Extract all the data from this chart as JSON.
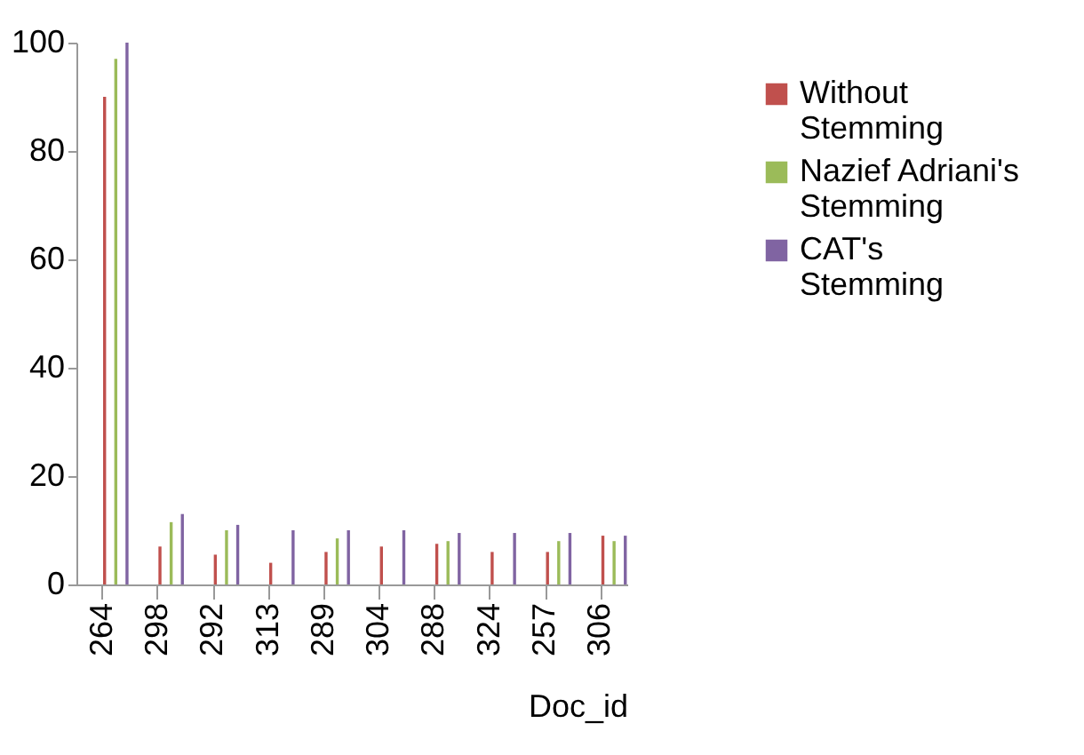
{
  "chart_data": {
    "type": "bar",
    "xlabel": "Doc_id",
    "categories": [
      "264",
      "298",
      "292",
      "313",
      "289",
      "304",
      "288",
      "324",
      "257",
      "306"
    ],
    "series": [
      {
        "name": "Without Stemming",
        "color": "#c0504d",
        "values": [
          90,
          7,
          5.5,
          4,
          6,
          7,
          7.5,
          6,
          6,
          9
        ]
      },
      {
        "name": "Nazief Adriani's Stemming",
        "color": "#9bbb59",
        "values": [
          97,
          11.5,
          10,
          0,
          8.5,
          0,
          8,
          0,
          8,
          8
        ]
      },
      {
        "name": "CAT's Stemming",
        "color": "#8064a2",
        "values": [
          100,
          13,
          11,
          10,
          10,
          10,
          9.5,
          9.5,
          9.5,
          9
        ]
      }
    ],
    "ylim": [
      0,
      100
    ],
    "yticks": [
      0,
      20,
      40,
      60,
      80,
      100
    ],
    "grid": false,
    "legend": "top right"
  }
}
